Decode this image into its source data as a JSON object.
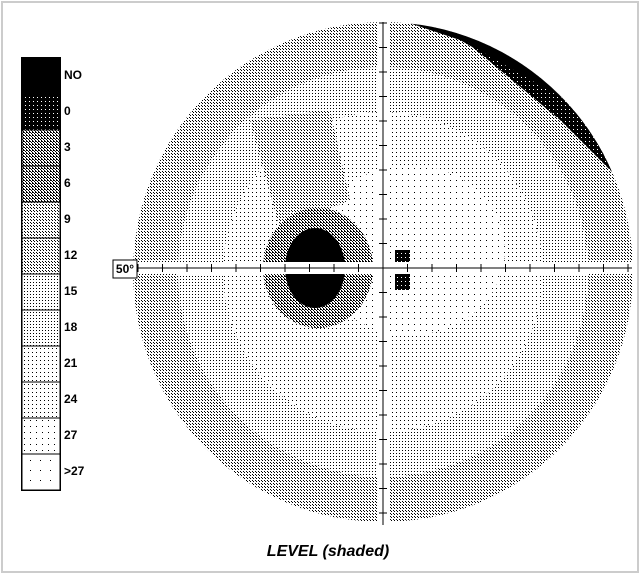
{
  "legend": {
    "levels": [
      "NO",
      "0",
      "3",
      "6",
      "9",
      "12",
      "15",
      "18",
      "21",
      "24",
      "27",
      ">27"
    ]
  },
  "axis_label": "50°",
  "caption": "LEVEL (shaded)"
}
